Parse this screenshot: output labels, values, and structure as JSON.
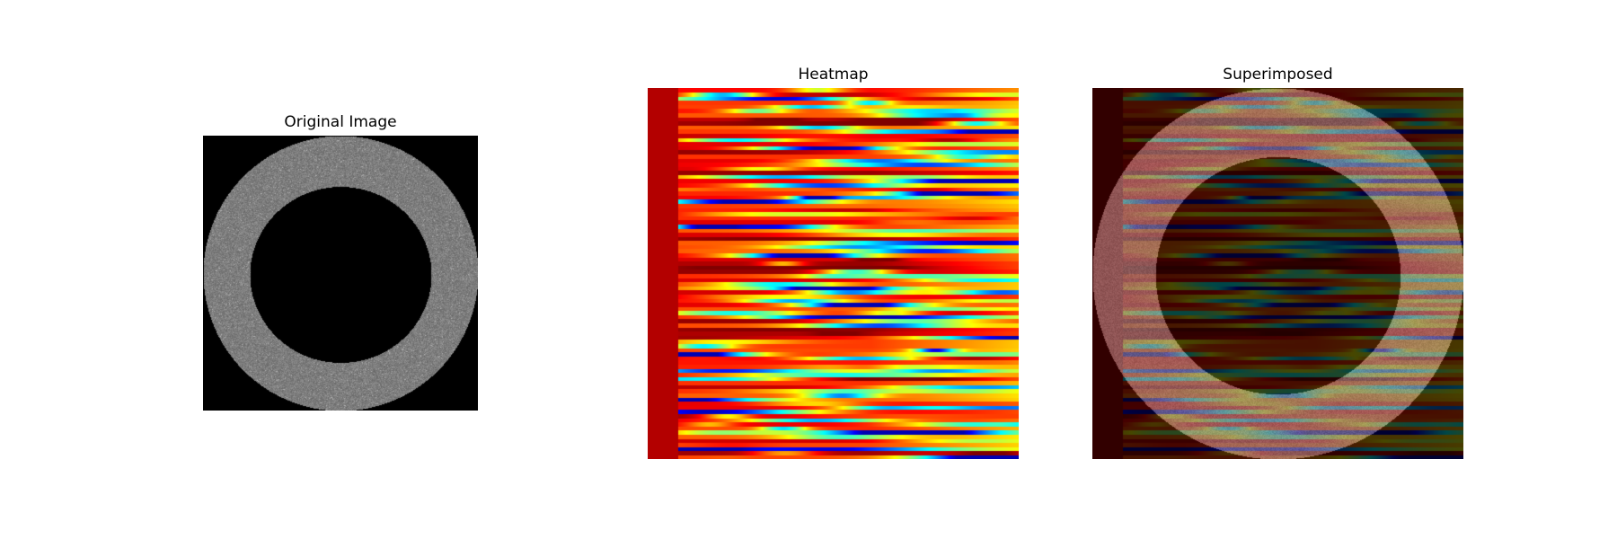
{
  "panels": {
    "original": {
      "title": "Original Image"
    },
    "heatmap": {
      "title": "Heatmap"
    },
    "superimposed": {
      "title": "Superimposed"
    }
  }
}
